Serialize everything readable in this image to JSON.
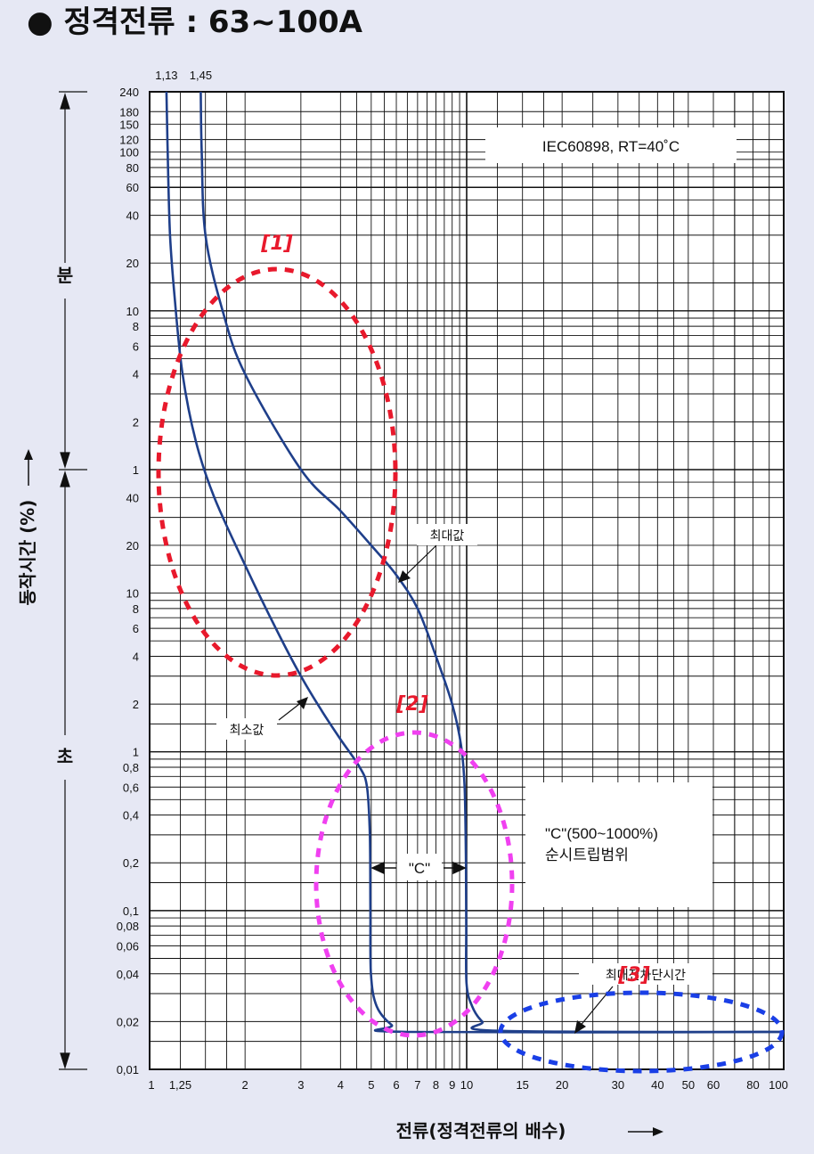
{
  "title": "● 정격전류 : 63~100A",
  "chart_data": {
    "type": "line",
    "title": "● 정격전류 : 63~100A",
    "xlabel": "전류(정격전류의 배수)",
    "ylabel": "동작시간 (%)",
    "x_scale": "log",
    "y_scale": "log",
    "xlim": [
      1,
      100
    ],
    "ylim_seconds": [
      0.01,
      14400
    ],
    "x_ticks": [
      "1",
      "1.25",
      "2",
      "3",
      "4",
      "5",
      "6",
      "7",
      "8",
      "9",
      "10",
      "15",
      "20",
      "30",
      "40",
      "50",
      "60",
      "80",
      "100"
    ],
    "y_ticks_seconds": [
      "0.01",
      "0.02",
      "0.04",
      "0.06",
      "0.08",
      "0.1",
      "0.2",
      "0.4",
      "0.6",
      "0.8",
      "1",
      "2",
      "4",
      "6",
      "8",
      "10",
      "20",
      "40"
    ],
    "y_ticks_minutes": [
      "1",
      "2",
      "4",
      "6",
      "8",
      "10",
      "20",
      "40",
      "60",
      "80",
      "100",
      "120",
      "150",
      "180",
      "240"
    ],
    "top_labels": [
      "1.13",
      "1.45"
    ],
    "y_unit_minutes": "분",
    "y_unit_seconds": "초",
    "standard_box": "IEC60898, RT=40˚C",
    "range_note_line1": "\"C\"(500~1000%)",
    "range_note_line2": "순시트립범위",
    "c_label": "\"C\"",
    "max_label": "최대값",
    "min_label": "최소값",
    "max_break_label": "최대전차단시간",
    "markers": [
      "[1]",
      "[2]",
      "[3]"
    ],
    "grid": true,
    "series": [
      {
        "name": "최소값",
        "points": [
          [
            1.13,
            14400
          ],
          [
            1.14,
            6000
          ],
          [
            1.16,
            1800
          ],
          [
            1.2,
            720
          ],
          [
            1.27,
            240
          ],
          [
            1.4,
            90
          ],
          [
            1.6,
            40
          ],
          [
            2.0,
            15
          ],
          [
            2.5,
            6
          ],
          [
            3.0,
            3
          ],
          [
            3.5,
            1.8
          ],
          [
            4.0,
            1.2
          ],
          [
            4.6,
            0.8
          ],
          [
            4.85,
            0.6
          ],
          [
            4.95,
            0.3
          ],
          [
            4.97,
            0.1
          ],
          [
            4.99,
            0.04
          ],
          [
            5.2,
            0.025
          ],
          [
            5.8,
            0.019
          ],
          [
            6.5,
            0.0172
          ],
          [
            100,
            0.0172
          ]
        ]
      },
      {
        "name": "최대값",
        "points": [
          [
            1.45,
            14400
          ],
          [
            1.46,
            6000
          ],
          [
            1.5,
            1800
          ],
          [
            1.7,
            600
          ],
          [
            2.0,
            240
          ],
          [
            3.0,
            60
          ],
          [
            4.0,
            33
          ],
          [
            5.0,
            20
          ],
          [
            6.0,
            13
          ],
          [
            7.0,
            8
          ],
          [
            8.0,
            4
          ],
          [
            9.0,
            2
          ],
          [
            9.6,
            1.1
          ],
          [
            9.85,
            0.6
          ],
          [
            9.95,
            0.2
          ],
          [
            9.97,
            0.08
          ],
          [
            9.99,
            0.035
          ],
          [
            10.4,
            0.025
          ],
          [
            11.2,
            0.02
          ],
          [
            12.5,
            0.0175
          ],
          [
            100,
            0.0172
          ]
        ]
      }
    ]
  },
  "colors": {
    "background": "#e6e8f4",
    "plot_background": "#ffffff",
    "curve": "#1f3f8a",
    "grid": "#111111",
    "marker1": "#e8192c",
    "marker2": "#f040f0",
    "marker3": "#1a3fe6"
  }
}
